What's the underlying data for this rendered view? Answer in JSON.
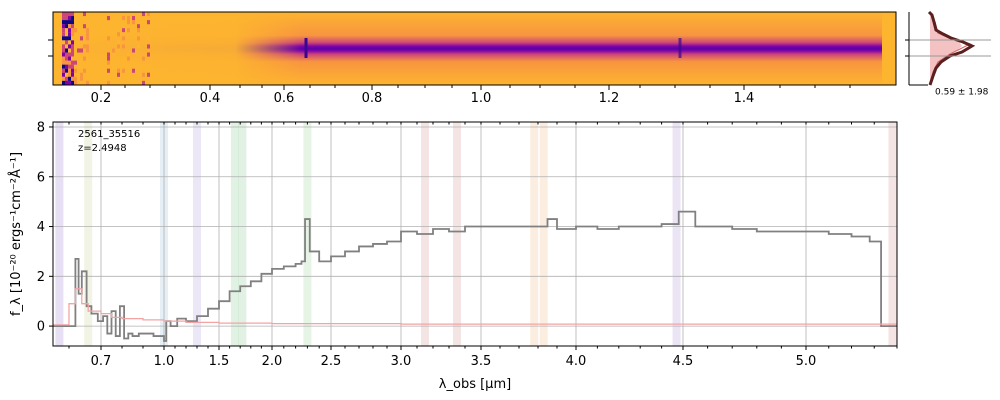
{
  "chart_data": [
    {
      "type": "heatmap",
      "name": "2D spectrum",
      "x_ticks": [
        "0.2",
        "0.4",
        "0.6",
        "0.8",
        "1.0",
        "1.2",
        "1.4"
      ],
      "colormap": [
        "#0d0887",
        "#7e03a8",
        "#cc4778",
        "#f89540",
        "#fdb42f"
      ],
      "trace_center_fraction": 0.5
    },
    {
      "type": "line",
      "name": "profile",
      "annotation": "0.59 ± 1.98",
      "colors": {
        "fill": "#f4c2c2",
        "line": "#5a1f1f"
      }
    },
    {
      "type": "line",
      "name": "1D spectrum",
      "ylabel": "f_λ [10⁻²⁰ ergs⁻¹cm⁻²Å⁻¹]",
      "xlabel": "λ_obs [μm]",
      "ylim": [
        -0.8,
        8.2
      ],
      "y_ticks": [
        0,
        2,
        4,
        6,
        8
      ],
      "x_ticks": [
        {
          "label": "0.7",
          "value": 0.7
        },
        {
          "label": "1.0",
          "value": 1.0
        },
        {
          "label": "1.5",
          "value": 1.5
        },
        {
          "label": "2.0",
          "value": 2.0
        },
        {
          "label": "2.5",
          "value": 2.5
        },
        {
          "label": "3.0",
          "value": 3.0
        },
        {
          "label": "3.5",
          "value": 3.5
        },
        {
          "label": "4.0",
          "value": 4.0
        },
        {
          "label": "4.5",
          "value": 4.5
        },
        {
          "label": "5.0",
          "value": 5.0
        }
      ],
      "annotations": [
        "2561_35516",
        "z=2.4948"
      ],
      "grid": true,
      "series": [
        {
          "color": "#808080",
          "points": [
            [
              0.55,
              0
            ],
            [
              0.6,
              0
            ],
            [
              0.62,
              2.7
            ],
            [
              0.63,
              1.3
            ],
            [
              0.64,
              2.2
            ],
            [
              0.655,
              0.8
            ],
            [
              0.67,
              0.5
            ],
            [
              0.69,
              0.2
            ],
            [
              0.71,
              0.4
            ],
            [
              0.73,
              -0.3
            ],
            [
              0.75,
              0.6
            ],
            [
              0.77,
              -0.4
            ],
            [
              0.79,
              0.8
            ],
            [
              0.81,
              -0.5
            ],
            [
              0.83,
              -0.3
            ],
            [
              0.85,
              -0.4
            ],
            [
              0.88,
              -0.3
            ],
            [
              0.91,
              -0.3
            ],
            [
              0.95,
              -0.4
            ],
            [
              1.0,
              -0.6
            ],
            [
              1.02,
              0.2
            ],
            [
              1.06,
              0.0
            ],
            [
              1.12,
              0.3
            ],
            [
              1.2,
              0.2
            ],
            [
              1.3,
              0.4
            ],
            [
              1.4,
              0.7
            ],
            [
              1.5,
              1.0
            ],
            [
              1.6,
              1.4
            ],
            [
              1.7,
              1.6
            ],
            [
              1.8,
              1.8
            ],
            [
              1.9,
              2.1
            ],
            [
              2.0,
              2.3
            ],
            [
              2.1,
              2.4
            ],
            [
              2.2,
              2.5
            ],
            [
              2.25,
              2.6
            ],
            [
              2.28,
              4.3
            ],
            [
              2.32,
              3.0
            ],
            [
              2.4,
              2.6
            ],
            [
              2.5,
              2.8
            ],
            [
              2.6,
              3.0
            ],
            [
              2.7,
              3.2
            ],
            [
              2.8,
              3.3
            ],
            [
              2.9,
              3.4
            ],
            [
              3.0,
              3.8
            ],
            [
              3.1,
              3.7
            ],
            [
              3.2,
              3.9
            ],
            [
              3.3,
              3.8
            ],
            [
              3.4,
              4.0
            ],
            [
              3.5,
              4.0
            ],
            [
              3.6,
              4.0
            ],
            [
              3.7,
              4.0
            ],
            [
              3.8,
              4.0
            ],
            [
              3.85,
              4.3
            ],
            [
              3.9,
              3.9
            ],
            [
              4.0,
              4.0
            ],
            [
              4.1,
              3.9
            ],
            [
              4.2,
              4.0
            ],
            [
              4.3,
              4.0
            ],
            [
              4.4,
              4.1
            ],
            [
              4.48,
              4.6
            ],
            [
              4.55,
              4.0
            ],
            [
              4.6,
              4.0
            ],
            [
              4.7,
              3.9
            ],
            [
              4.8,
              3.8
            ],
            [
              4.9,
              3.8
            ],
            [
              5.0,
              3.8
            ],
            [
              5.1,
              3.7
            ],
            [
              5.2,
              3.6
            ],
            [
              5.28,
              3.4
            ],
            [
              5.32,
              3.4
            ],
            [
              5.33,
              0
            ],
            [
              5.4,
              0
            ]
          ]
        },
        {
          "color": "#f4a3a3",
          "points": [
            [
              0.55,
              0.05
            ],
            [
              0.6,
              0.9
            ],
            [
              0.62,
              1.5
            ],
            [
              0.64,
              0.9
            ],
            [
              0.66,
              0.6
            ],
            [
              0.7,
              0.5
            ],
            [
              0.75,
              0.35
            ],
            [
              0.8,
              0.3
            ],
            [
              0.9,
              0.25
            ],
            [
              1.0,
              0.2
            ],
            [
              1.2,
              0.15
            ],
            [
              1.5,
              0.12
            ],
            [
              2.0,
              0.1
            ],
            [
              3.0,
              0.08
            ],
            [
              4.0,
              0.08
            ],
            [
              5.0,
              0.08
            ],
            [
              5.4,
              0.08
            ]
          ]
        }
      ],
      "bands": [
        {
          "value": 0.57,
          "color": "#b9a6e0"
        },
        {
          "value": 0.66,
          "color": "#d6dcb2"
        },
        {
          "value": 1.0,
          "color": "#b7d0e6"
        },
        {
          "value": 1.3,
          "color": "#c9b9e8"
        },
        {
          "value": 1.65,
          "color": "#a9d6b3"
        },
        {
          "value": 1.72,
          "color": "#a9d6b3"
        },
        {
          "value": 2.3,
          "color": "#b7dfb8"
        },
        {
          "value": 3.15,
          "color": "#e2b1b1"
        },
        {
          "value": 3.35,
          "color": "#e2b1b1"
        },
        {
          "value": 3.78,
          "color": "#f4cfa6"
        },
        {
          "value": 3.83,
          "color": "#f4cfa6"
        },
        {
          "value": 4.47,
          "color": "#c7b3e2"
        },
        {
          "value": 5.38,
          "color": "#e2b1b1"
        }
      ]
    }
  ]
}
